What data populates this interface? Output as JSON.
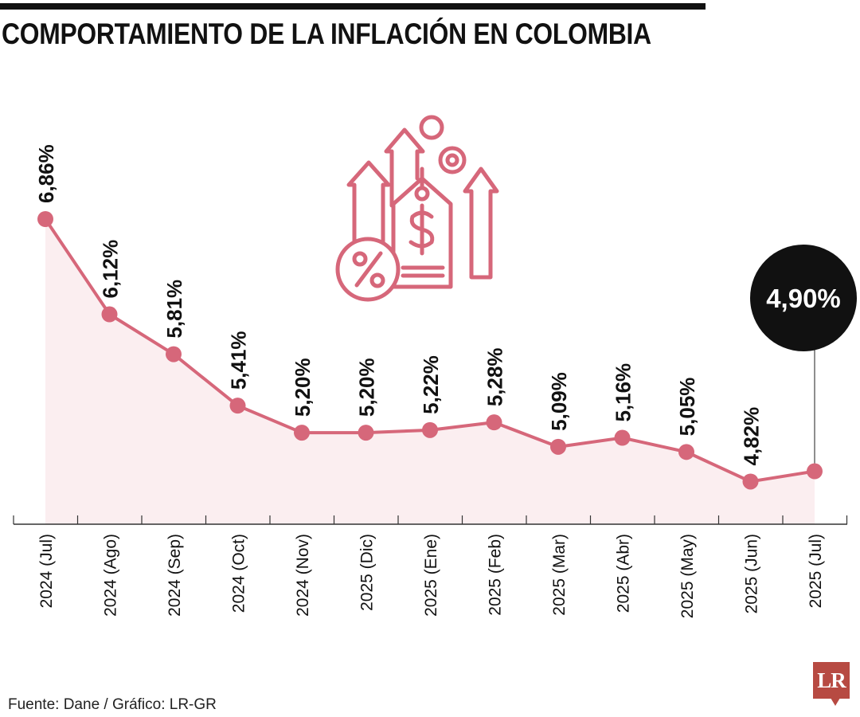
{
  "title": "COMPORTAMIENTO DE LA INFLACIÓN EN COLOMBIA",
  "source": "Fuente: Dane / Gráfico: LR-GR",
  "logo": {
    "text": "LR",
    "color": "#b74a42"
  },
  "icon": "inflation-price-tag-arrows-icon",
  "colors": {
    "line": "#d6677a",
    "area": "#fbeef0",
    "callout": "#111111",
    "axis": "#333333"
  },
  "chart_data": {
    "type": "line",
    "title": "COMPORTAMIENTO DE LA INFLACIÓN EN COLOMBIA",
    "categories": [
      "2024 (Jul)",
      "2024 (Ago)",
      "2024 (Sep)",
      "2024 (Oct)",
      "2024 (Nov)",
      "2025 (Dic)",
      "2025 (Ene)",
      "2025 (Feb)",
      "2025 (Mar)",
      "2025 (Abr)",
      "2025 (May)",
      "2025 (Jun)",
      "2025 (Jul)"
    ],
    "values": [
      6.86,
      6.12,
      5.81,
      5.41,
      5.2,
      5.2,
      5.22,
      5.28,
      5.09,
      5.16,
      5.05,
      4.82,
      4.9
    ],
    "labels": [
      "6,86%",
      "6,12%",
      "5,81%",
      "5,41%",
      "5,20%",
      "5,20%",
      "5,22%",
      "5,28%",
      "5,09%",
      "5,16%",
      "5,05%",
      "4,82%",
      "4,90%"
    ],
    "highlight": {
      "index": 12,
      "label": "4,90%"
    },
    "ylim": [
      4.5,
      7.0
    ],
    "grid": false,
    "legend": "none"
  }
}
